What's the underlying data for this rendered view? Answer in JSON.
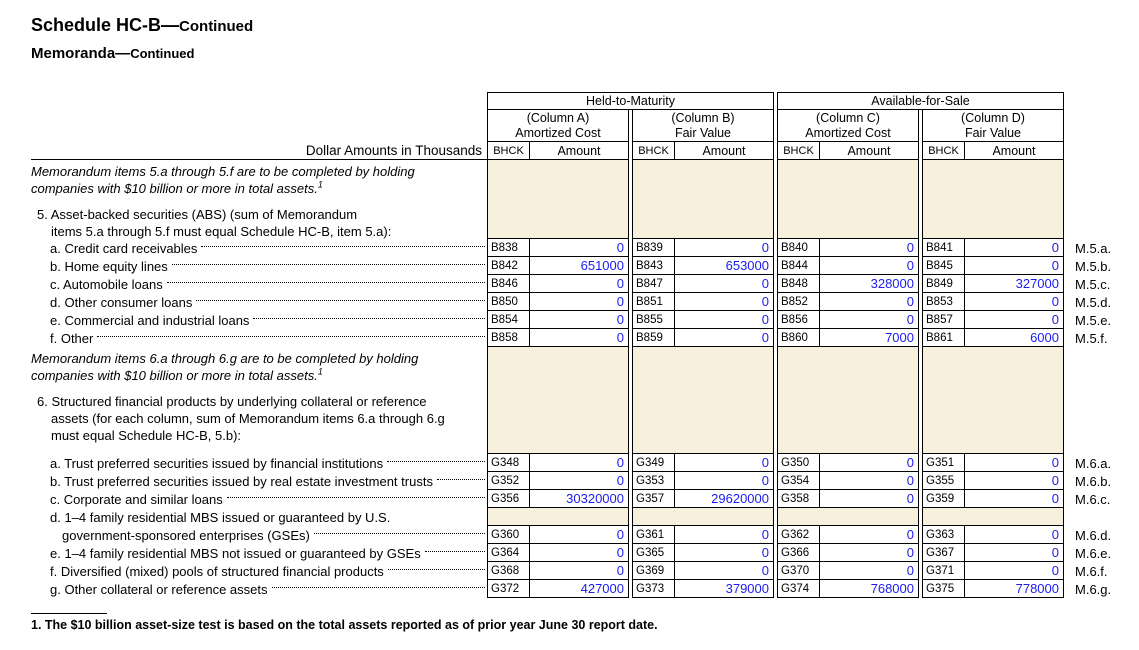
{
  "page": {
    "title_main": "Schedule HC-B—",
    "title_continued": "Continued",
    "memoranda_main": "Memoranda—",
    "memoranda_continued": "Continued"
  },
  "colors": {
    "shaded_cell": "#f7f0dc",
    "value_text": "#1c1cf0"
  },
  "table": {
    "dollar_label": "Dollar Amounts in Thousands",
    "groups": [
      {
        "label": "Held-to-Maturity"
      },
      {
        "label": "Available-for-Sale"
      }
    ],
    "columns": [
      {
        "line1": "(Column A)",
        "line2": "Amortized Cost"
      },
      {
        "line1": "(Column B)",
        "line2": "Fair Value"
      },
      {
        "line1": "(Column C)",
        "line2": "Amortized Cost"
      },
      {
        "line1": "(Column D)",
        "line2": "Fair Value"
      }
    ],
    "code_label": "BHCK",
    "amount_label": "Amount"
  },
  "memo5": {
    "note_line1": "Memorandum items 5.a through 5.f are to be completed by holding",
    "note_line2": "companies with $10 billion or more in total assets.",
    "note_footnote_ref": "1",
    "intro_line1": "5. Asset-backed securities (ABS) (sum of Memorandum",
    "intro_line2": "items 5.a through 5.f must equal Schedule HC-B, item 5.a):",
    "rows": [
      {
        "label": "a. Credit card receivables",
        "ref": "M.5.a.",
        "cells": [
          {
            "code": "B838",
            "value": "0"
          },
          {
            "code": "B839",
            "value": "0"
          },
          {
            "code": "B840",
            "value": "0"
          },
          {
            "code": "B841",
            "value": "0"
          }
        ]
      },
      {
        "label": "b. Home equity lines",
        "ref": "M.5.b.",
        "cells": [
          {
            "code": "B842",
            "value": "651000"
          },
          {
            "code": "B843",
            "value": "653000"
          },
          {
            "code": "B844",
            "value": "0"
          },
          {
            "code": "B845",
            "value": "0"
          }
        ]
      },
      {
        "label": "c. Automobile loans",
        "ref": "M.5.c.",
        "cells": [
          {
            "code": "B846",
            "value": "0"
          },
          {
            "code": "B847",
            "value": "0"
          },
          {
            "code": "B848",
            "value": "328000"
          },
          {
            "code": "B849",
            "value": "327000"
          }
        ]
      },
      {
        "label": "d. Other consumer loans",
        "ref": "M.5.d.",
        "cells": [
          {
            "code": "B850",
            "value": "0"
          },
          {
            "code": "B851",
            "value": "0"
          },
          {
            "code": "B852",
            "value": "0"
          },
          {
            "code": "B853",
            "value": "0"
          }
        ]
      },
      {
        "label": "e. Commercial and industrial loans",
        "ref": "M.5.e.",
        "cells": [
          {
            "code": "B854",
            "value": "0"
          },
          {
            "code": "B855",
            "value": "0"
          },
          {
            "code": "B856",
            "value": "0"
          },
          {
            "code": "B857",
            "value": "0"
          }
        ]
      },
      {
        "label": "f. Other",
        "ref": "M.5.f.",
        "cells": [
          {
            "code": "B858",
            "value": "0"
          },
          {
            "code": "B859",
            "value": "0"
          },
          {
            "code": "B860",
            "value": "7000"
          },
          {
            "code": "B861",
            "value": "6000"
          }
        ]
      }
    ]
  },
  "memo6": {
    "note_line1": "Memorandum items 6.a through 6.g are to be completed by holding",
    "note_line2": "companies with $10 billion or more in total assets.",
    "note_footnote_ref": "1",
    "intro_line1": "6. Structured financial products by underlying collateral or reference",
    "intro_line2": "assets (for each column, sum of Memorandum items 6.a through 6.g",
    "intro_line3": "must equal Schedule HC-B, 5.b):",
    "rows": [
      {
        "label": "a. Trust preferred securities issued by financial institutions",
        "ref": "M.6.a.",
        "cells": [
          {
            "code": "G348",
            "value": "0"
          },
          {
            "code": "G349",
            "value": "0"
          },
          {
            "code": "G350",
            "value": "0"
          },
          {
            "code": "G351",
            "value": "0"
          }
        ]
      },
      {
        "label": "b. Trust preferred securities issued by real estate investment trusts",
        "ref": "M.6.b.",
        "cells": [
          {
            "code": "G352",
            "value": "0"
          },
          {
            "code": "G353",
            "value": "0"
          },
          {
            "code": "G354",
            "value": "0"
          },
          {
            "code": "G355",
            "value": "0"
          }
        ]
      },
      {
        "label": "c. Corporate and similar loans",
        "ref": "M.6.c.",
        "cells": [
          {
            "code": "G356",
            "value": "30320000"
          },
          {
            "code": "G357",
            "value": "29620000"
          },
          {
            "code": "G358",
            "value": "0"
          },
          {
            "code": "G359",
            "value": "0"
          }
        ]
      },
      {
        "label_line1": "d. 1–4 family residential MBS issued or guaranteed by U.S.",
        "label_line2": "government-sponsored enterprises (GSEs)",
        "ref": "M.6.d.",
        "cells": [
          {
            "code": "G360",
            "value": "0"
          },
          {
            "code": "G361",
            "value": "0"
          },
          {
            "code": "G362",
            "value": "0"
          },
          {
            "code": "G363",
            "value": "0"
          }
        ]
      },
      {
        "label": "e. 1–4 family residential MBS not issued or guaranteed by GSEs",
        "ref": "M.6.e.",
        "cells": [
          {
            "code": "G364",
            "value": "0"
          },
          {
            "code": "G365",
            "value": "0"
          },
          {
            "code": "G366",
            "value": "0"
          },
          {
            "code": "G367",
            "value": "0"
          }
        ]
      },
      {
        "label": "f. Diversified (mixed) pools of structured financial products",
        "ref": "M.6.f.",
        "cells": [
          {
            "code": "G368",
            "value": "0"
          },
          {
            "code": "G369",
            "value": "0"
          },
          {
            "code": "G370",
            "value": "0"
          },
          {
            "code": "G371",
            "value": "0"
          }
        ]
      },
      {
        "label": "g. Other collateral or reference assets",
        "ref": "M.6.g.",
        "cells": [
          {
            "code": "G372",
            "value": "427000"
          },
          {
            "code": "G373",
            "value": "379000"
          },
          {
            "code": "G374",
            "value": "768000"
          },
          {
            "code": "G375",
            "value": "778000"
          }
        ]
      }
    ]
  },
  "footnote": "1. The $10 billion asset-size test is based on the total assets reported as of prior year June 30 report date."
}
